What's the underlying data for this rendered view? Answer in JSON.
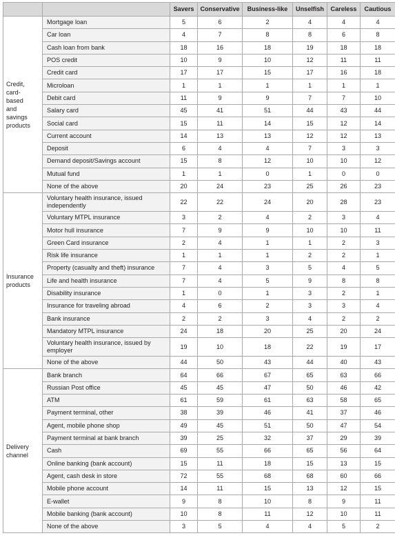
{
  "columns": [
    "Savers",
    "Conservative",
    "Business-like",
    "Unselfish",
    "Careless",
    "Cautious"
  ],
  "groups": [
    {
      "label": "Credit, card-based and savings products",
      "label_lines": [
        "Credit,",
        "card-",
        "based",
        "and",
        "savings",
        "products"
      ],
      "rows": [
        {
          "label": "Mortgage loan",
          "values": [
            5,
            6,
            2,
            4,
            4,
            4
          ]
        },
        {
          "label": "Car loan",
          "values": [
            4,
            7,
            8,
            8,
            6,
            8
          ]
        },
        {
          "label": "Cash loan from bank",
          "values": [
            18,
            16,
            18,
            19,
            18,
            18
          ]
        },
        {
          "label": "POS credit",
          "values": [
            10,
            9,
            10,
            12,
            11,
            11
          ]
        },
        {
          "label": "Credit card",
          "values": [
            17,
            17,
            15,
            17,
            16,
            18
          ]
        },
        {
          "label": "Microloan",
          "values": [
            1,
            1,
            1,
            1,
            1,
            1
          ]
        },
        {
          "label": "Debit card",
          "values": [
            11,
            9,
            9,
            7,
            7,
            10
          ]
        },
        {
          "label": "Salary card",
          "values": [
            45,
            41,
            51,
            44,
            43,
            44
          ]
        },
        {
          "label": "Social card",
          "values": [
            15,
            11,
            14,
            15,
            12,
            14
          ]
        },
        {
          "label": "Current account",
          "values": [
            14,
            13,
            13,
            12,
            12,
            13
          ]
        },
        {
          "label": "Deposit",
          "values": [
            6,
            4,
            4,
            7,
            3,
            3
          ]
        },
        {
          "label": "Demand deposit/Savings account",
          "values": [
            15,
            8,
            12,
            10,
            10,
            12
          ]
        },
        {
          "label": "Mutual fund",
          "values": [
            1,
            1,
            0,
            1,
            0,
            0
          ]
        },
        {
          "label": "None of the above",
          "values": [
            20,
            24,
            23,
            25,
            26,
            23
          ]
        }
      ]
    },
    {
      "label": "Insurance products",
      "label_lines": [
        "Insurance",
        "products"
      ],
      "rows": [
        {
          "label": "Voluntary health insurance, issued independently",
          "lines": [
            "Voluntary health insurance, issued",
            "independently"
          ],
          "values": [
            22,
            22,
            24,
            20,
            28,
            23
          ]
        },
        {
          "label": "Voluntary MTPL insurance",
          "values": [
            3,
            2,
            4,
            2,
            3,
            4
          ]
        },
        {
          "label": "Motor hull insurance",
          "values": [
            7,
            9,
            9,
            10,
            10,
            11
          ]
        },
        {
          "label": "Green Card insurance",
          "values": [
            2,
            4,
            1,
            1,
            2,
            3
          ]
        },
        {
          "label": "Risk life insurance",
          "values": [
            1,
            1,
            1,
            2,
            2,
            1
          ]
        },
        {
          "label": "Property (casualty and theft) insurance",
          "values": [
            7,
            4,
            3,
            5,
            4,
            5
          ]
        },
        {
          "label": "Life and health insurance",
          "values": [
            7,
            4,
            5,
            9,
            8,
            8
          ]
        },
        {
          "label": "Disability insurance",
          "values": [
            1,
            0,
            1,
            3,
            2,
            1
          ]
        },
        {
          "label": "Insurance for traveling abroad",
          "values": [
            4,
            6,
            2,
            3,
            3,
            4
          ]
        },
        {
          "label": "Bank insurance",
          "values": [
            2,
            2,
            3,
            4,
            2,
            2
          ]
        },
        {
          "label": "Mandatory MTPL insurance",
          "values": [
            24,
            18,
            20,
            25,
            20,
            24
          ]
        },
        {
          "label": "Voluntary health insurance, issued by employer",
          "lines": [
            "Voluntary health insurance, issued by",
            "employer"
          ],
          "values": [
            19,
            10,
            18,
            22,
            19,
            17
          ]
        },
        {
          "label": "None of the above",
          "values": [
            44,
            50,
            43,
            44,
            40,
            43
          ]
        }
      ]
    },
    {
      "label": "Delivery channel",
      "label_lines": [
        "Delivery",
        "channel"
      ],
      "rows": [
        {
          "label": "Bank branch",
          "values": [
            64,
            66,
            67,
            65,
            63,
            66
          ]
        },
        {
          "label": "Russian Post office",
          "values": [
            45,
            45,
            47,
            50,
            46,
            42
          ]
        },
        {
          "label": "ATM",
          "values": [
            61,
            59,
            61,
            63,
            58,
            65
          ]
        },
        {
          "label": "Payment terminal, other",
          "values": [
            38,
            39,
            46,
            41,
            37,
            46
          ]
        },
        {
          "label": "Agent, mobile phone shop",
          "values": [
            49,
            45,
            51,
            50,
            47,
            54
          ]
        },
        {
          "label": "Payment terminal at bank branch",
          "values": [
            39,
            25,
            32,
            37,
            29,
            39
          ]
        },
        {
          "label": "Cash",
          "values": [
            69,
            55,
            66,
            65,
            56,
            64
          ]
        },
        {
          "label": "Online banking (bank account)",
          "values": [
            15,
            11,
            18,
            15,
            13,
            15
          ]
        },
        {
          "label": "Agent, cash desk in store",
          "values": [
            72,
            55,
            68,
            68,
            60,
            66
          ]
        },
        {
          "label": "Mobile phone account",
          "values": [
            14,
            11,
            15,
            13,
            12,
            15
          ]
        },
        {
          "label": "E-wallet",
          "values": [
            9,
            8,
            10,
            8,
            9,
            11
          ]
        },
        {
          "label": "Mobile banking (bank account)",
          "values": [
            10,
            8,
            11,
            12,
            10,
            11
          ]
        },
        {
          "label": "None of the above",
          "values": [
            3,
            5,
            4,
            4,
            5,
            2
          ]
        }
      ]
    }
  ]
}
